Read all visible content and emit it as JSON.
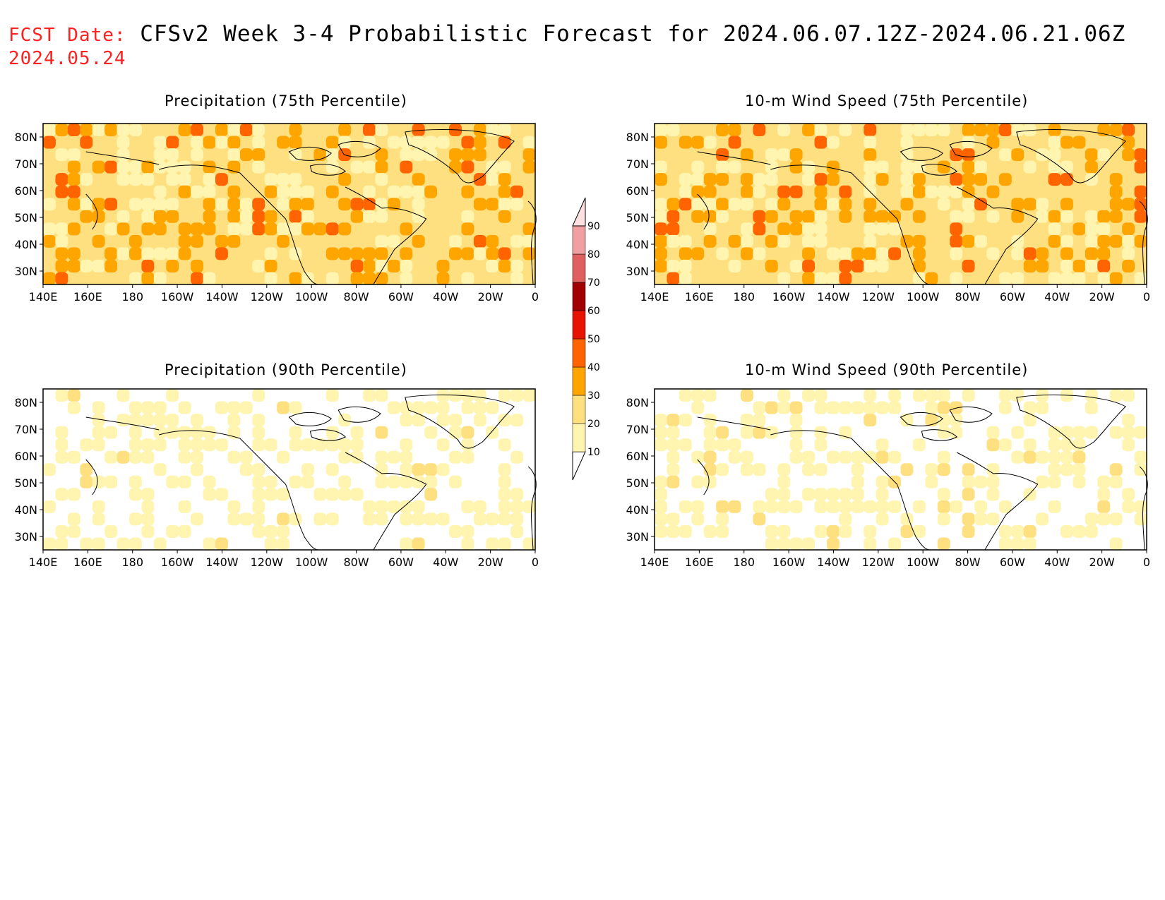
{
  "header": {
    "fcst_label": "FCST Date:",
    "title": "CFSv2 Week 3-4 Probabilistic Forecast for 2024.06.07.12Z-2024.06.21.06Z",
    "fcst_date": "2024.05.24"
  },
  "panels": [
    {
      "id": "precip75",
      "title": "Precipitation (75th Percentile)",
      "intensity": "high"
    },
    {
      "id": "wind75",
      "title": "10-m Wind Speed (75th Percentile)",
      "intensity": "high"
    },
    {
      "id": "precip90",
      "title": "Precipitation (90th Percentile)",
      "intensity": "low"
    },
    {
      "id": "wind90",
      "title": "10-m Wind Speed (90th Percentile)",
      "intensity": "low"
    }
  ],
  "axes": {
    "lat_labels": [
      "80N",
      "70N",
      "60N",
      "50N",
      "40N",
      "30N"
    ],
    "lon_labels": [
      "140E",
      "160E",
      "180",
      "160W",
      "140W",
      "120W",
      "100W",
      "80W",
      "60W",
      "40W",
      "20W",
      "0"
    ]
  },
  "colorbar": {
    "levels": [
      "10",
      "20",
      "30",
      "40",
      "50",
      "60",
      "70",
      "80",
      "90"
    ],
    "colors": [
      "#ffffff",
      "#fff5b0",
      "#ffe080",
      "#ffa500",
      "#ff6400",
      "#e61400",
      "#a00000",
      "#e06060",
      "#f0a0a0",
      "#ffe0e0"
    ]
  }
}
